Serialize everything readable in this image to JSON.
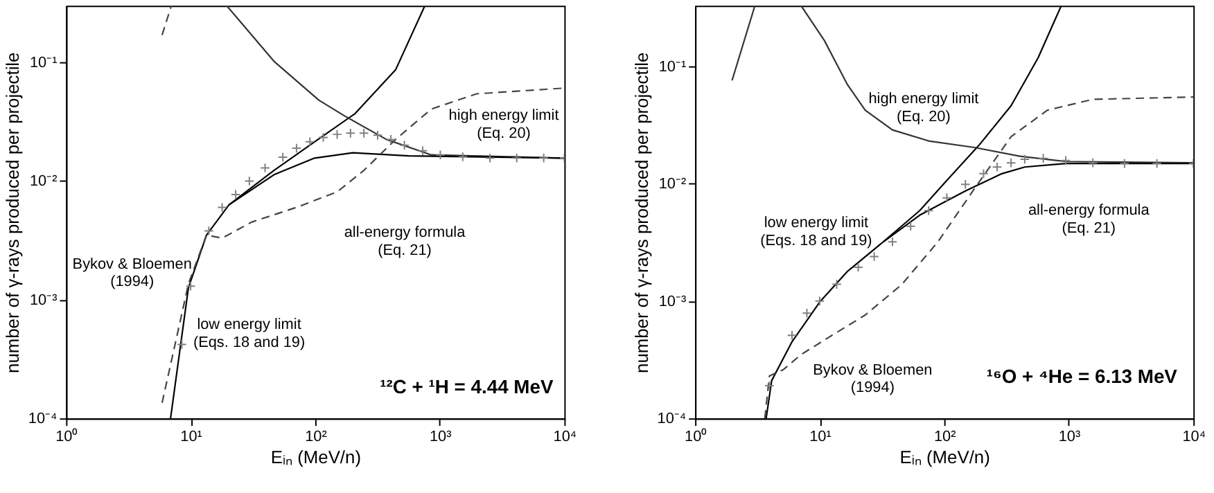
{
  "chart_data": [
    {
      "type": "line",
      "xlabel": "Eᵢₙ (MeV/n)",
      "ylabel": "number of γ-rays produced per projectile",
      "log": "xy",
      "grid": false,
      "xlim": [
        1,
        10000
      ],
      "ylim": [
        0.0001,
        0.3
      ],
      "xticks": [
        {
          "value": 1,
          "label": "10⁰"
        },
        {
          "value": 10,
          "label": "10¹"
        },
        {
          "value": 100,
          "label": "10²"
        },
        {
          "value": 1000,
          "label": "10³"
        },
        {
          "value": 10000,
          "label": "10⁴"
        }
      ],
      "yticks": [
        {
          "value": 0.0001,
          "label": "10⁻⁴"
        },
        {
          "value": 0.001,
          "label": "10⁻³"
        },
        {
          "value": 0.01,
          "label": "10⁻²"
        },
        {
          "value": 0.1,
          "label": "10⁻¹"
        }
      ],
      "series": [
        {
          "color": "#000000",
          "line_style": "solid",
          "x": [
            6.9,
            9.6,
            13.4,
            20.3,
            46.7,
            98.8,
            209,
            442,
            759
          ],
          "values": [
            0.0001,
            0.00126,
            0.0035,
            0.0063,
            0.0123,
            0.0214,
            0.037,
            0.0865,
            0.3
          ]
        },
        {
          "color": "#333333",
          "line_style": "solid",
          "x": [
            19.5,
            46.7,
            107,
            170,
            373,
            855,
            10000
          ],
          "values": [
            0.3,
            0.102,
            0.048,
            0.0356,
            0.0224,
            0.0166,
            0.0156
          ]
        },
        {
          "color": "#000000",
          "line_style": "solid",
          "x": [
            20.3,
            46.7,
            98.8,
            200,
            565,
            10000
          ],
          "values": [
            0.0063,
            0.0113,
            0.0156,
            0.0173,
            0.0163,
            0.0156
          ]
        },
        {
          "color": "#444444",
          "line_style": "dashed",
          "x": [
            5.9,
            7.0
          ],
          "values": [
            0.17,
            0.3
          ]
        },
        {
          "color": "#444444",
          "line_style": "dashed",
          "x": [
            5.9,
            7.5,
            9.6,
            13.4,
            17.9,
            30.8,
            70.8,
            150,
            246,
            442,
            855,
            1973,
            10000
          ],
          "values": [
            0.000135,
            0.00042,
            0.00136,
            0.0035,
            0.0033,
            0.0045,
            0.006,
            0.0081,
            0.0123,
            0.0224,
            0.0404,
            0.0543,
            0.0607
          ]
        },
        {
          "type": "scatter",
          "color": "#808080",
          "marker": "cross",
          "x": [
            8.5,
            10,
            14,
            17.9,
            23,
            29.6,
            39.6,
            55,
            70.8,
            90.7,
            116,
            150,
            192,
            246,
            317,
            405,
            520,
            730,
            1010,
            1530,
            2530,
            4150,
            6830,
            10000
          ],
          "values": [
            0.00042,
            0.0013,
            0.0038,
            0.006,
            0.0077,
            0.01,
            0.0129,
            0.0159,
            0.0189,
            0.0214,
            0.0233,
            0.0247,
            0.0253,
            0.0253,
            0.0243,
            0.0224,
            0.02,
            0.018,
            0.0166,
            0.016,
            0.0156,
            0.0156,
            0.0156,
            0.0156
          ]
        }
      ],
      "annotations": [
        "high energy limit\n(Eq. 20)",
        "all-energy formula\n(Eq. 21)",
        "Bykov & Bloemen\n(1994)",
        "low energy limit\n(Eqs. 18 and 19)",
        "¹²C + ¹H = 4.44 MeV"
      ]
    },
    {
      "type": "line",
      "xlabel": "Eᵢₙ (MeV/n)",
      "ylabel": "number of γ-rays produced per projectile",
      "log": "xy",
      "grid": false,
      "xlim": [
        1,
        10000
      ],
      "ylim": [
        0.0001,
        0.33
      ],
      "xticks": [
        {
          "value": 1,
          "label": "10⁰"
        },
        {
          "value": 10,
          "label": "10¹"
        },
        {
          "value": 100,
          "label": "10²"
        },
        {
          "value": 1000,
          "label": "10³"
        },
        {
          "value": 10000,
          "label": "10⁴"
        }
      ],
      "yticks": [
        {
          "value": 0.0001,
          "label": "10⁻⁴"
        },
        {
          "value": 0.001,
          "label": "10⁻³"
        },
        {
          "value": 0.01,
          "label": "10⁻²"
        },
        {
          "value": 0.1,
          "label": "10⁻¹"
        }
      ],
      "series": [
        {
          "color": "#000000",
          "line_style": "solid",
          "x": [
            3.72,
            4.12,
            6.0,
            10,
            16.6,
            32.4,
            63.5,
            105,
            190,
            344,
            568,
            870
          ],
          "values": [
            0.0001,
            0.00021,
            0.00045,
            0.00098,
            0.00178,
            0.0032,
            0.0059,
            0.0107,
            0.0213,
            0.0463,
            0.119,
            0.33
          ]
        },
        {
          "color": "#333333",
          "line_style": "solid",
          "x": [
            7.1,
            10.9,
            16.6,
            23.2,
            38.4,
            75,
            175,
            405,
            945,
            10000
          ],
          "values": [
            0.33,
            0.167,
            0.071,
            0.0424,
            0.0288,
            0.0232,
            0.0204,
            0.0172,
            0.0155,
            0.0151
          ]
        },
        {
          "color": "#333333",
          "line_style": "solid",
          "x": [
            1.98,
            3.02
          ],
          "values": [
            0.076,
            0.33
          ]
        },
        {
          "color": "#000000",
          "line_style": "solid",
          "x": [
            32.4,
            63.5,
            148,
            290,
            443,
            945,
            10000
          ],
          "values": [
            0.0032,
            0.0054,
            0.0087,
            0.0122,
            0.0139,
            0.0149,
            0.0149
          ]
        },
        {
          "color": "#444444",
          "line_style": "dashed",
          "x": [
            3.63,
            3.95,
            5.1,
            7.1,
            11.8,
            23.2,
            45.5,
            89,
            175,
            344,
            672,
            1560,
            10000
          ],
          "values": [
            0.0001,
            0.00023,
            0.00026,
            0.00035,
            0.00049,
            0.00076,
            0.00138,
            0.0032,
            0.0091,
            0.0252,
            0.0424,
            0.0525,
            0.055
          ]
        },
        {
          "type": "scatter",
          "color": "#808080",
          "marker": "cross",
          "x": [
            3.95,
            6.0,
            7.9,
            10,
            13.7,
            20.4,
            27.4,
            38.4,
            53.8,
            75,
            105,
            148,
            207,
            266,
            344,
            443,
            624,
            945,
            1560,
            2800,
            5100,
            10000
          ],
          "values": [
            0.00019,
            0.00051,
            0.00079,
            0.001,
            0.00139,
            0.00194,
            0.0024,
            0.0032,
            0.00435,
            0.0059,
            0.0076,
            0.0099,
            0.0122,
            0.0139,
            0.0151,
            0.0162,
            0.0165,
            0.0158,
            0.0151,
            0.0149,
            0.0149,
            0.0149
          ]
        }
      ],
      "annotations": [
        "high energy limit\n(Eq. 20)",
        "all-energy formula\n(Eq. 21)",
        "low energy limit\n(Eqs. 18 and 19)",
        "Bykov & Bloemen\n(1994)",
        "¹⁶O + ⁴He = 6.13 MeV"
      ]
    }
  ]
}
